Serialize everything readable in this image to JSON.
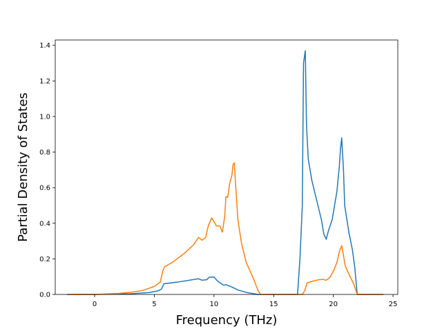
{
  "chart_data": {
    "type": "line",
    "title": "",
    "xlabel": "Frequency (THz)",
    "ylabel": "Partial Density of States",
    "xlim": [
      -3.3,
      25.4
    ],
    "ylim": [
      0,
      1.43
    ],
    "xticks": [
      0,
      5,
      10,
      15,
      20,
      25
    ],
    "xtick_labels": [
      "0",
      "5",
      "10",
      "15",
      "20",
      "25"
    ],
    "yticks": [
      0.0,
      0.2,
      0.4,
      0.6,
      0.8,
      1.0,
      1.2,
      1.4
    ],
    "ytick_labels": [
      "0.0",
      "0.2",
      "0.4",
      "0.6",
      "0.8",
      "1.0",
      "1.2",
      "1.4"
    ],
    "grid": false,
    "legend": "none",
    "series": [
      {
        "color": "#1f77b4",
        "points": [
          [
            -2.3,
            0.0
          ],
          [
            0.0,
            0.0
          ],
          [
            3.0,
            0.004
          ],
          [
            4.5,
            0.01
          ],
          [
            5.3,
            0.02
          ],
          [
            5.6,
            0.03
          ],
          [
            5.8,
            0.06
          ],
          [
            7.0,
            0.07
          ],
          [
            8.7,
            0.088
          ],
          [
            9.0,
            0.08
          ],
          [
            9.4,
            0.083
          ],
          [
            9.6,
            0.097
          ],
          [
            10.0,
            0.098
          ],
          [
            10.3,
            0.075
          ],
          [
            10.8,
            0.052
          ],
          [
            11.0,
            0.055
          ],
          [
            11.5,
            0.042
          ],
          [
            12.0,
            0.025
          ],
          [
            12.8,
            0.01
          ],
          [
            13.7,
            0.0
          ],
          [
            17.0,
            0.0
          ],
          [
            17.2,
            0.2
          ],
          [
            17.4,
            0.5
          ],
          [
            17.5,
            1.3
          ],
          [
            17.65,
            1.37
          ],
          [
            17.75,
            0.95
          ],
          [
            17.9,
            0.76
          ],
          [
            18.2,
            0.64
          ],
          [
            18.6,
            0.53
          ],
          [
            19.0,
            0.42
          ],
          [
            19.2,
            0.34
          ],
          [
            19.4,
            0.31
          ],
          [
            19.6,
            0.36
          ],
          [
            19.9,
            0.42
          ],
          [
            20.3,
            0.58
          ],
          [
            20.5,
            0.72
          ],
          [
            20.6,
            0.82
          ],
          [
            20.7,
            0.88
          ],
          [
            20.85,
            0.7
          ],
          [
            20.95,
            0.5
          ],
          [
            21.3,
            0.35
          ],
          [
            21.6,
            0.25
          ],
          [
            21.8,
            0.15
          ],
          [
            22.0,
            0.0
          ],
          [
            24.2,
            0.0
          ]
        ]
      },
      {
        "color": "#ff7f0e",
        "points": [
          [
            -2.3,
            0.0
          ],
          [
            0.0,
            0.0
          ],
          [
            1.0,
            0.003
          ],
          [
            2.0,
            0.006
          ],
          [
            3.0,
            0.012
          ],
          [
            4.0,
            0.022
          ],
          [
            5.0,
            0.045
          ],
          [
            5.5,
            0.07
          ],
          [
            5.7,
            0.13
          ],
          [
            5.85,
            0.155
          ],
          [
            6.5,
            0.18
          ],
          [
            7.5,
            0.23
          ],
          [
            8.3,
            0.28
          ],
          [
            8.7,
            0.32
          ],
          [
            9.0,
            0.305
          ],
          [
            9.3,
            0.32
          ],
          [
            9.5,
            0.38
          ],
          [
            9.8,
            0.43
          ],
          [
            10.0,
            0.41
          ],
          [
            10.2,
            0.385
          ],
          [
            10.5,
            0.385
          ],
          [
            10.7,
            0.35
          ],
          [
            10.9,
            0.44
          ],
          [
            11.0,
            0.55
          ],
          [
            11.15,
            0.545
          ],
          [
            11.3,
            0.62
          ],
          [
            11.5,
            0.67
          ],
          [
            11.6,
            0.73
          ],
          [
            11.7,
            0.74
          ],
          [
            12.0,
            0.42
          ],
          [
            12.3,
            0.29
          ],
          [
            12.7,
            0.18
          ],
          [
            13.3,
            0.09
          ],
          [
            13.7,
            0.02
          ],
          [
            13.9,
            0.0
          ],
          [
            17.4,
            0.0
          ],
          [
            17.6,
            0.02
          ],
          [
            17.8,
            0.065
          ],
          [
            18.3,
            0.075
          ],
          [
            18.8,
            0.083
          ],
          [
            19.1,
            0.085
          ],
          [
            19.4,
            0.08
          ],
          [
            19.7,
            0.095
          ],
          [
            20.0,
            0.13
          ],
          [
            20.3,
            0.18
          ],
          [
            20.5,
            0.24
          ],
          [
            20.7,
            0.275
          ],
          [
            21.0,
            0.16
          ],
          [
            21.4,
            0.1
          ],
          [
            21.7,
            0.06
          ],
          [
            22.0,
            0.0
          ],
          [
            24.2,
            0.0
          ]
        ]
      }
    ]
  }
}
